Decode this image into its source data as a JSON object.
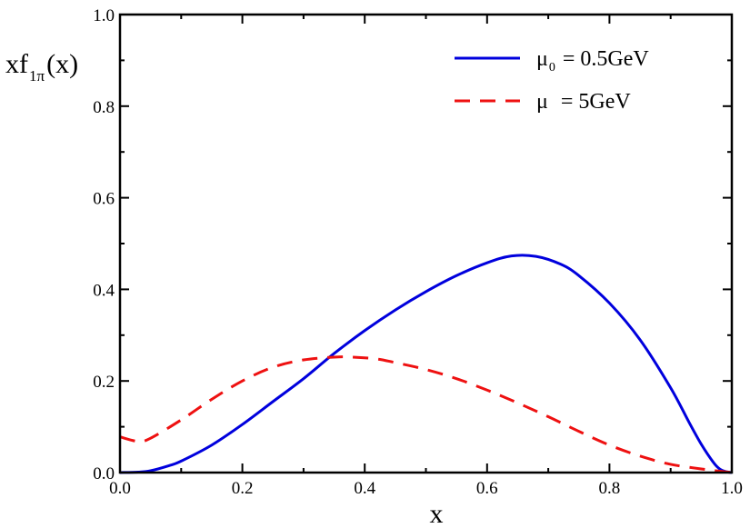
{
  "chart_data": {
    "type": "line",
    "title": "",
    "xlabel": "x",
    "ylabel": {
      "main": "xf",
      "subscript": "1π",
      "suffix": "(x)"
    },
    "xlim": [
      0.0,
      1.0
    ],
    "ylim": [
      0.0,
      1.0
    ],
    "grid": false,
    "legend_position": "top-right",
    "x_ticks": [
      "0.0",
      "0.2",
      "0.4",
      "0.6",
      "0.8",
      "1.0"
    ],
    "y_ticks": [
      "0.0",
      "0.2",
      "0.4",
      "0.6",
      "0.8",
      "1.0"
    ],
    "series": [
      {
        "name": "μ0 = 0.5GeV",
        "legend_symbol": "μ",
        "legend_subscript": "0",
        "legend_value": "= 0.5GeV",
        "color": "#0000dd",
        "style": "solid",
        "x": [
          0.0,
          0.03,
          0.05,
          0.08,
          0.1,
          0.15,
          0.2,
          0.25,
          0.3,
          0.35,
          0.4,
          0.45,
          0.5,
          0.55,
          0.6,
          0.64,
          0.68,
          0.72,
          0.75,
          0.8,
          0.85,
          0.9,
          0.93,
          0.95,
          0.97,
          0.98,
          0.99,
          1.0
        ],
        "y": [
          0.0,
          0.001,
          0.004,
          0.015,
          0.025,
          0.06,
          0.105,
          0.155,
          0.205,
          0.26,
          0.31,
          0.355,
          0.395,
          0.43,
          0.458,
          0.473,
          0.472,
          0.455,
          0.43,
          0.37,
          0.29,
          0.185,
          0.11,
          0.062,
          0.022,
          0.008,
          0.002,
          0.0
        ]
      },
      {
        "name": "μ = 5GeV",
        "legend_symbol": "μ",
        "legend_subscript": "",
        "legend_value": "= 5GeV",
        "color": "#ee1111",
        "style": "dashed",
        "x": [
          0.0,
          0.03,
          0.05,
          0.1,
          0.15,
          0.2,
          0.25,
          0.3,
          0.35,
          0.38,
          0.42,
          0.45,
          0.5,
          0.55,
          0.6,
          0.65,
          0.7,
          0.75,
          0.8,
          0.85,
          0.9,
          0.95,
          0.98,
          1.0
        ],
        "y": [
          0.078,
          0.068,
          0.075,
          0.115,
          0.16,
          0.2,
          0.23,
          0.246,
          0.252,
          0.252,
          0.248,
          0.24,
          0.225,
          0.205,
          0.18,
          0.152,
          0.122,
          0.09,
          0.06,
          0.036,
          0.018,
          0.008,
          0.003,
          0.0
        ]
      }
    ]
  }
}
